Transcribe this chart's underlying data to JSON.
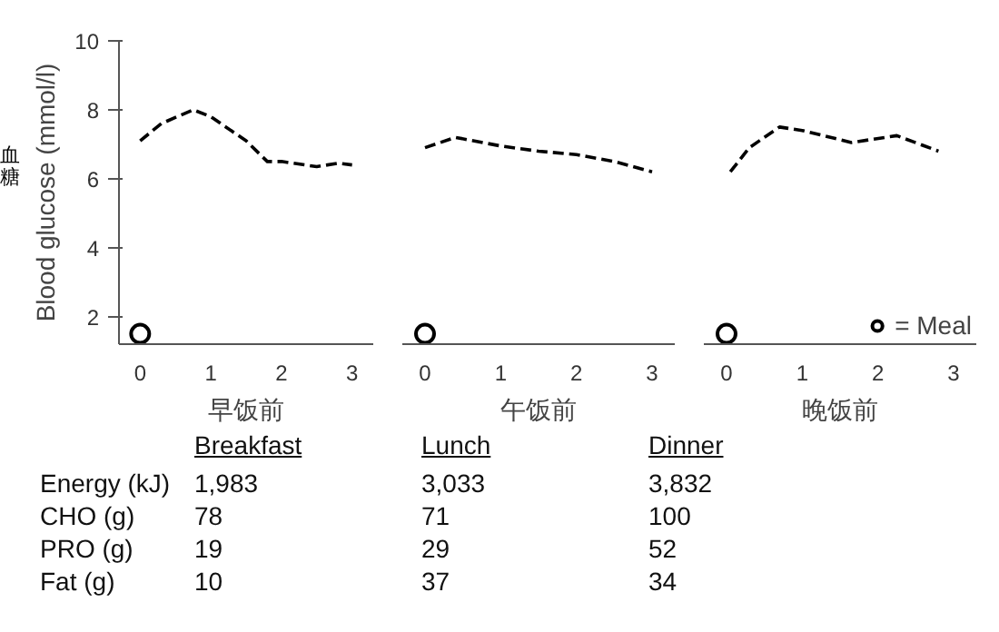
{
  "chart_data": [
    {
      "type": "line",
      "xlabel": "早饭前",
      "ylabel": "Blood glucose (mmol/l)",
      "annotations": [
        "血糖"
      ],
      "xlim": [
        -0.3,
        3.3
      ],
      "ylim": [
        1.2,
        10
      ],
      "xticks": [
        0,
        1,
        2,
        3
      ],
      "yticks": [
        2,
        4,
        6,
        8,
        10
      ],
      "grid": false,
      "line_style": "dashed",
      "series": [
        {
          "color": "#000000",
          "x": [
            0,
            0.3,
            0.75,
            1,
            1.5,
            1.8,
            2,
            2.5,
            2.8,
            3
          ],
          "values": [
            7.1,
            7.6,
            8.0,
            7.8,
            7.1,
            6.5,
            6.5,
            6.35,
            6.45,
            6.4
          ]
        },
        {
          "type": "scatter",
          "marker": "circle",
          "color": "#000000",
          "x": [
            0
          ],
          "values": [
            1.5
          ]
        }
      ]
    },
    {
      "type": "line",
      "xlabel": "午饭前",
      "xlim": [
        -0.3,
        3.3
      ],
      "ylim": [
        1.2,
        10
      ],
      "xticks": [
        0,
        1,
        2,
        3
      ],
      "yticks": [
        2,
        4,
        6,
        8,
        10
      ],
      "grid": false,
      "tick_labels": "x",
      "line_style": "dashed",
      "series": [
        {
          "color": "#000000",
          "x": [
            0,
            0.4,
            1,
            1.5,
            2,
            2.5,
            3
          ],
          "values": [
            6.9,
            7.2,
            6.95,
            6.8,
            6.7,
            6.5,
            6.2
          ]
        },
        {
          "type": "scatter",
          "marker": "circle",
          "color": "#000000",
          "x": [
            0
          ],
          "values": [
            1.5
          ]
        }
      ]
    },
    {
      "type": "line",
      "xlabel": "晚饭前",
      "xlim": [
        -0.3,
        3.3
      ],
      "ylim": [
        1.2,
        10
      ],
      "xticks": [
        0,
        1,
        2,
        3
      ],
      "yticks": [
        2,
        4,
        6,
        8,
        10
      ],
      "grid": false,
      "tick_labels": "x",
      "line_style": "dashed",
      "legend": "bottom right",
      "series": [
        {
          "color": "#000000",
          "x": [
            0.05,
            0.3,
            0.7,
            1,
            1.65,
            2.25,
            2.8
          ],
          "values": [
            6.2,
            6.9,
            7.5,
            7.4,
            7.05,
            7.25,
            6.8
          ]
        },
        {
          "type": "scatter",
          "name": "= Meal",
          "marker": "circle",
          "color": "#000000",
          "x": [
            0
          ],
          "values": [
            1.5
          ]
        }
      ]
    },
    {
      "type": "other",
      "categories": [
        "Breakfast",
        "Lunch",
        "Dinner"
      ],
      "y_categories": [
        "Energy (kJ)",
        "CHO (g)",
        "PRO (g)",
        "Fat (g)"
      ],
      "cell_labels": [
        [
          "1,983",
          "3,033",
          "3,832"
        ],
        [
          "78",
          "71",
          "100"
        ],
        [
          "19",
          "29",
          "52"
        ],
        [
          "10",
          "37",
          "34"
        ]
      ]
    }
  ]
}
